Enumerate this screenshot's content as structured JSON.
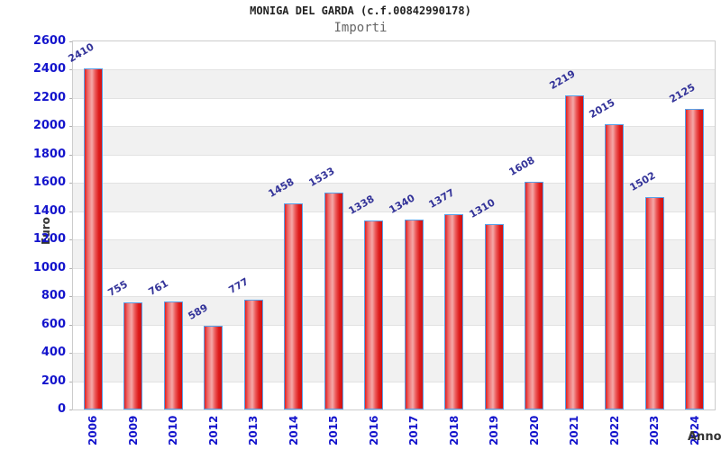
{
  "header": {
    "title": "MONIGA DEL GARDA (c.f.00842990178)",
    "subtitle": "Importi"
  },
  "chart_data": {
    "type": "bar",
    "title": "MONIGA DEL GARDA (c.f.00842990178)",
    "subtitle": "Importi",
    "xlabel": "Anno",
    "ylabel": "Euro",
    "categories": [
      "2006",
      "2009",
      "2010",
      "2012",
      "2013",
      "2014",
      "2015",
      "2016",
      "2017",
      "2018",
      "2019",
      "2020",
      "2021",
      "2022",
      "2023",
      "2024"
    ],
    "values": [
      2410,
      755,
      761,
      589,
      777,
      1458,
      1533,
      1338,
      1340,
      1377,
      1310,
      1608,
      2219,
      2015,
      1502,
      2125
    ],
    "ylim": [
      0,
      2600
    ],
    "ytick_step": 200,
    "yticks": [
      0,
      200,
      400,
      600,
      800,
      1000,
      1200,
      1400,
      1600,
      1800,
      2000,
      2200,
      2400,
      2600
    ],
    "grid": "horizontal-bands-on",
    "legend": "none",
    "colors": {
      "bar_gradient": [
        "#e01f1f",
        "#ee6a6a",
        "#f4a8a8",
        "#ec5c5c",
        "#dd1b1b",
        "#d11414"
      ],
      "bar_border": "#58a0e8",
      "band": "#f1f1f1",
      "gridline": "#e2e2e2",
      "plot_border": "#cccccc",
      "tick_label": "#1414cc",
      "value_label": "#333399",
      "title": "#222222",
      "subtitle": "#666666",
      "axis_title": "#333333"
    }
  }
}
